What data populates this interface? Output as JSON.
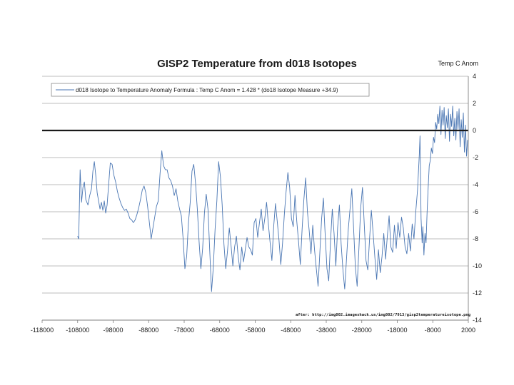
{
  "chart_data": {
    "type": "line",
    "title": "GISP2 Temperature from d018 Isotopes",
    "ylabel": "Temp C Anom",
    "xlabel": "",
    "xlim": [
      -118000,
      2000
    ],
    "ylim": [
      -14,
      4
    ],
    "x_ticks": [
      "-118000",
      "-108000",
      "-98000",
      "-88000",
      "-78000",
      "-68000",
      "-58000",
      "-48000",
      "-38000",
      "-28000",
      "-18000",
      "-8000",
      "2000"
    ],
    "y_ticks": [
      "4",
      "2",
      "0",
      "-2",
      "-4",
      "-6",
      "-8",
      "-10",
      "-12",
      "-14"
    ],
    "grid": true,
    "zero_line": 0,
    "legend": {
      "placement": "top-left",
      "entries": [
        "d018 Isotope to Temperature Anomaly Formula :  Temp C Anom = 1.428 * (do18 Isotope Measure +34.9)"
      ]
    },
    "annotation": "after:  http://img802.imageshack.us/img802/7913/gisp2temperatureisotope.png",
    "series": [
      {
        "name": "d018 Isotope to Temperature Anomaly Formula :  Temp C Anom = 1.428 * (do18 Isotope Measure +34.9)",
        "color": "#4a76b3",
        "points": [
          [
            -108000,
            -7.8
          ],
          [
            -107700,
            -8.0
          ],
          [
            -107300,
            -2.9
          ],
          [
            -106900,
            -5.3
          ],
          [
            -106500,
            -4.2
          ],
          [
            -106100,
            -3.8
          ],
          [
            -105700,
            -5.1
          ],
          [
            -105100,
            -5.5
          ],
          [
            -104600,
            -4.8
          ],
          [
            -104100,
            -4.3
          ],
          [
            -103700,
            -3.0
          ],
          [
            -103300,
            -2.3
          ],
          [
            -102900,
            -3.3
          ],
          [
            -102500,
            -4.6
          ],
          [
            -102100,
            -5.2
          ],
          [
            -101700,
            -5.8
          ],
          [
            -101300,
            -5.3
          ],
          [
            -100900,
            -5.9
          ],
          [
            -100500,
            -5.2
          ],
          [
            -100100,
            -6.1
          ],
          [
            -99700,
            -5.5
          ],
          [
            -99300,
            -4.1
          ],
          [
            -98800,
            -2.4
          ],
          [
            -98300,
            -2.5
          ],
          [
            -97800,
            -3.3
          ],
          [
            -97300,
            -3.8
          ],
          [
            -96800,
            -4.5
          ],
          [
            -96300,
            -5.0
          ],
          [
            -95800,
            -5.4
          ],
          [
            -95300,
            -5.7
          ],
          [
            -94800,
            -5.9
          ],
          [
            -94300,
            -5.8
          ],
          [
            -93800,
            -6.1
          ],
          [
            -93300,
            -6.5
          ],
          [
            -92800,
            -6.6
          ],
          [
            -92300,
            -6.8
          ],
          [
            -91800,
            -6.6
          ],
          [
            -91300,
            -6.2
          ],
          [
            -90800,
            -5.7
          ],
          [
            -90300,
            -5.1
          ],
          [
            -89800,
            -4.4
          ],
          [
            -89300,
            -4.1
          ],
          [
            -88800,
            -4.6
          ],
          [
            -88300,
            -5.6
          ],
          [
            -87800,
            -6.8
          ],
          [
            -87300,
            -8.0
          ],
          [
            -86800,
            -7.2
          ],
          [
            -86300,
            -6.4
          ],
          [
            -85800,
            -5.6
          ],
          [
            -85300,
            -5.2
          ],
          [
            -84800,
            -3.2
          ],
          [
            -84300,
            -1.5
          ],
          [
            -83800,
            -2.6
          ],
          [
            -83300,
            -2.9
          ],
          [
            -82800,
            -2.9
          ],
          [
            -82300,
            -3.5
          ],
          [
            -81800,
            -3.7
          ],
          [
            -81300,
            -4.1
          ],
          [
            -80800,
            -4.8
          ],
          [
            -80300,
            -4.3
          ],
          [
            -79800,
            -5.2
          ],
          [
            -79300,
            -5.8
          ],
          [
            -78800,
            -6.3
          ],
          [
            -78300,
            -8.0
          ],
          [
            -77800,
            -10.2
          ],
          [
            -77300,
            -9.3
          ],
          [
            -76800,
            -6.8
          ],
          [
            -76300,
            -5.3
          ],
          [
            -75800,
            -3.0
          ],
          [
            -75300,
            -2.5
          ],
          [
            -74800,
            -3.9
          ],
          [
            -74300,
            -5.8
          ],
          [
            -73800,
            -8.2
          ],
          [
            -73300,
            -10.2
          ],
          [
            -72800,
            -8.7
          ],
          [
            -72300,
            -6.1
          ],
          [
            -71800,
            -4.7
          ],
          [
            -71300,
            -5.8
          ],
          [
            -70800,
            -8.9
          ],
          [
            -70300,
            -11.9
          ],
          [
            -69800,
            -10.1
          ],
          [
            -69300,
            -7.3
          ],
          [
            -68800,
            -5.2
          ],
          [
            -68300,
            -2.3
          ],
          [
            -67800,
            -3.4
          ],
          [
            -67300,
            -5.5
          ],
          [
            -66800,
            -8.4
          ],
          [
            -66300,
            -10.2
          ],
          [
            -65800,
            -8.9
          ],
          [
            -65300,
            -7.2
          ],
          [
            -64800,
            -8.5
          ],
          [
            -64300,
            -10.0
          ],
          [
            -63800,
            -8.6
          ],
          [
            -63300,
            -7.8
          ],
          [
            -62800,
            -9.3
          ],
          [
            -62300,
            -10.3
          ],
          [
            -61800,
            -8.6
          ],
          [
            -61300,
            -9.7
          ],
          [
            -60800,
            -8.8
          ],
          [
            -60300,
            -7.9
          ],
          [
            -59800,
            -8.6
          ],
          [
            -59300,
            -8.8
          ],
          [
            -58800,
            -9.2
          ],
          [
            -58300,
            -6.8
          ],
          [
            -57800,
            -6.5
          ],
          [
            -57300,
            -7.9
          ],
          [
            -56800,
            -6.8
          ],
          [
            -56300,
            -5.8
          ],
          [
            -55800,
            -7.4
          ],
          [
            -55300,
            -6.5
          ],
          [
            -54800,
            -5.3
          ],
          [
            -54300,
            -6.9
          ],
          [
            -53800,
            -8.3
          ],
          [
            -53300,
            -9.6
          ],
          [
            -52800,
            -7.1
          ],
          [
            -52300,
            -5.4
          ],
          [
            -51800,
            -6.7
          ],
          [
            -51300,
            -8.1
          ],
          [
            -50800,
            -9.9
          ],
          [
            -50300,
            -8.3
          ],
          [
            -49800,
            -6.2
          ],
          [
            -49300,
            -4.5
          ],
          [
            -48800,
            -3.1
          ],
          [
            -48300,
            -4.2
          ],
          [
            -47800,
            -6.5
          ],
          [
            -47300,
            -7.1
          ],
          [
            -46800,
            -4.8
          ],
          [
            -46300,
            -6.7
          ],
          [
            -45800,
            -8.2
          ],
          [
            -45300,
            -9.9
          ],
          [
            -44800,
            -7.3
          ],
          [
            -44300,
            -5.1
          ],
          [
            -43800,
            -3.5
          ],
          [
            -43300,
            -6.0
          ],
          [
            -42800,
            -7.4
          ],
          [
            -42300,
            -9.1
          ],
          [
            -41800,
            -7.0
          ],
          [
            -41300,
            -8.8
          ],
          [
            -40800,
            -10.2
          ],
          [
            -40300,
            -11.5
          ],
          [
            -39800,
            -9.0
          ],
          [
            -39300,
            -6.5
          ],
          [
            -38800,
            -5.0
          ],
          [
            -38300,
            -7.7
          ],
          [
            -37800,
            -10.2
          ],
          [
            -37300,
            -11.1
          ],
          [
            -36800,
            -8.2
          ],
          [
            -36300,
            -5.8
          ],
          [
            -35800,
            -7.6
          ],
          [
            -35300,
            -10.0
          ],
          [
            -34800,
            -7.2
          ],
          [
            -34300,
            -5.5
          ],
          [
            -33800,
            -8.4
          ],
          [
            -33300,
            -10.3
          ],
          [
            -32800,
            -11.7
          ],
          [
            -32300,
            -9.5
          ],
          [
            -31800,
            -7.3
          ],
          [
            -31300,
            -5.8
          ],
          [
            -30800,
            -4.3
          ],
          [
            -30300,
            -7.2
          ],
          [
            -29800,
            -10.1
          ],
          [
            -29300,
            -11.5
          ],
          [
            -28800,
            -8.7
          ],
          [
            -28300,
            -5.7
          ],
          [
            -27800,
            -4.2
          ],
          [
            -27300,
            -6.9
          ],
          [
            -26800,
            -9.6
          ],
          [
            -26300,
            -10.3
          ],
          [
            -25800,
            -8.0
          ],
          [
            -25300,
            -5.9
          ],
          [
            -24800,
            -7.6
          ],
          [
            -24300,
            -9.4
          ],
          [
            -23800,
            -11.0
          ],
          [
            -23300,
            -8.8
          ],
          [
            -22800,
            -10.5
          ],
          [
            -22300,
            -9.3
          ],
          [
            -21800,
            -7.6
          ],
          [
            -21300,
            -9.5
          ],
          [
            -20800,
            -7.8
          ],
          [
            -20300,
            -6.3
          ],
          [
            -19800,
            -8.6
          ],
          [
            -19300,
            -9.0
          ],
          [
            -18800,
            -7.0
          ],
          [
            -18300,
            -8.7
          ],
          [
            -17800,
            -6.8
          ],
          [
            -17300,
            -7.9
          ],
          [
            -16800,
            -6.4
          ],
          [
            -16300,
            -7.2
          ],
          [
            -15800,
            -8.6
          ],
          [
            -15300,
            -9.1
          ],
          [
            -14800,
            -7.6
          ],
          [
            -14300,
            -8.9
          ],
          [
            -13800,
            -6.9
          ],
          [
            -13300,
            -8.0
          ],
          [
            -12800,
            -6.0
          ],
          [
            -12300,
            -4.4
          ],
          [
            -11800,
            -1.8
          ],
          [
            -11600,
            -0.4
          ],
          [
            -11300,
            -6.5
          ],
          [
            -11000,
            -8.3
          ],
          [
            -10800,
            -7.1
          ],
          [
            -10500,
            -9.2
          ],
          [
            -10200,
            -7.6
          ],
          [
            -9900,
            -8.3
          ],
          [
            -9600,
            -6.0
          ],
          [
            -9300,
            -4.2
          ],
          [
            -9000,
            -2.6
          ],
          [
            -8700,
            -2.2
          ],
          [
            -8400,
            -1.3
          ],
          [
            -8100,
            -1.7
          ],
          [
            -7800,
            -0.5
          ],
          [
            -7500,
            -0.9
          ],
          [
            -7200,
            0.6
          ],
          [
            -6900,
            0.1
          ],
          [
            -6600,
            1.2
          ],
          [
            -6300,
            0.5
          ],
          [
            -6000,
            1.8
          ],
          [
            -5700,
            -0.3
          ],
          [
            -5400,
            1.5
          ],
          [
            -5100,
            0.4
          ],
          [
            -4800,
            1.7
          ],
          [
            -4500,
            -0.6
          ],
          [
            -4200,
            1.1
          ],
          [
            -3900,
            0.2
          ],
          [
            -3600,
            1.6
          ],
          [
            -3300,
            -0.8
          ],
          [
            -3000,
            1.2
          ],
          [
            -2700,
            0.3
          ],
          [
            -2400,
            1.8
          ],
          [
            -2100,
            -0.4
          ],
          [
            -1800,
            0.9
          ],
          [
            -1500,
            -0.7
          ],
          [
            -1200,
            1.4
          ],
          [
            -900,
            0.1
          ],
          [
            -600,
            1.6
          ],
          [
            -300,
            -1.2
          ],
          [
            0,
            0.8
          ],
          [
            300,
            -0.5
          ],
          [
            600,
            1.3
          ],
          [
            900,
            -1.6
          ],
          [
            1200,
            0.4
          ],
          [
            1500,
            -1.9
          ],
          [
            1800,
            -0.7
          ]
        ]
      }
    ]
  }
}
